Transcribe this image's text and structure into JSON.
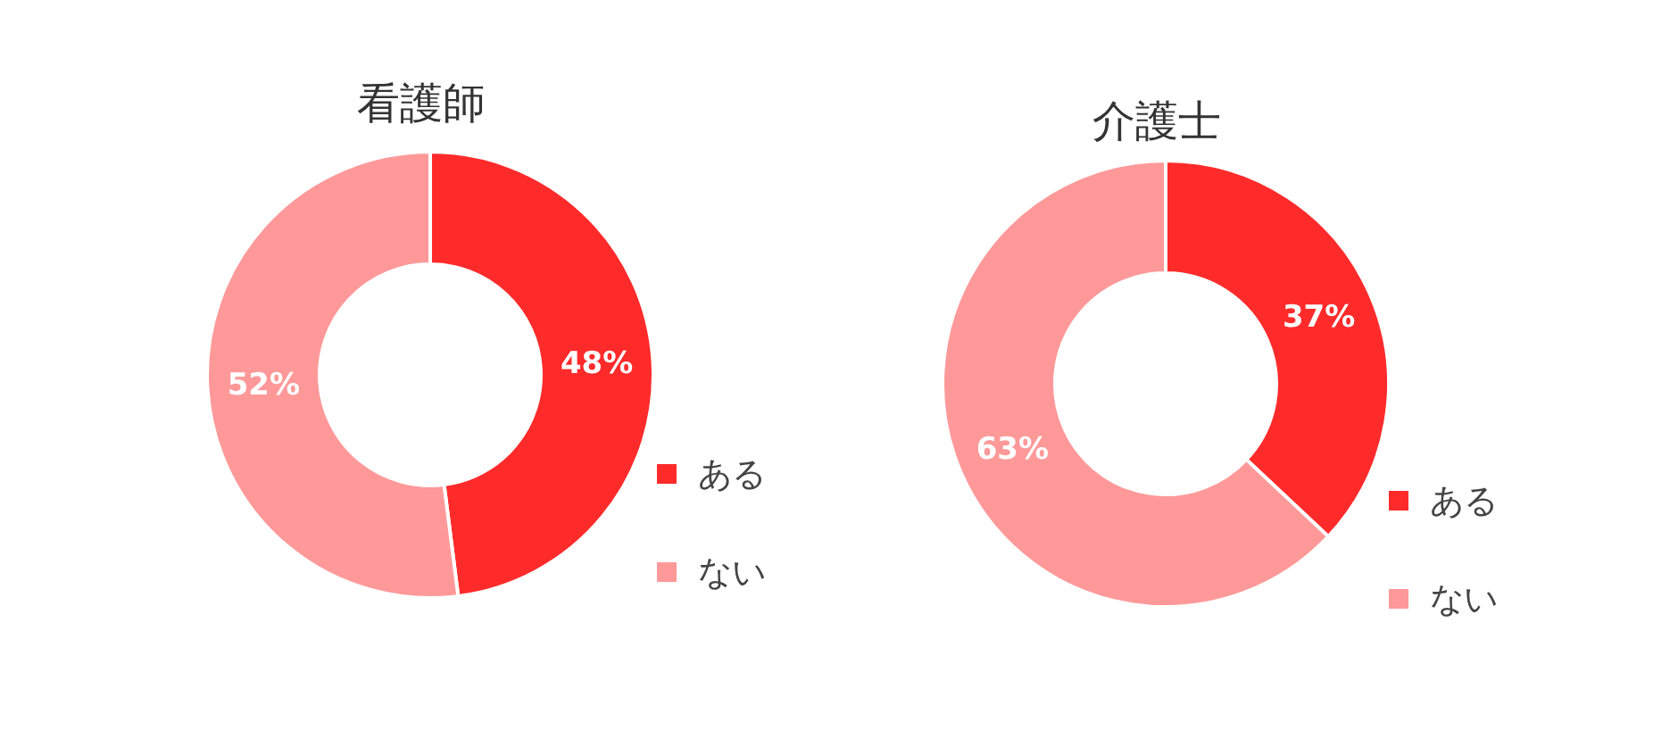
{
  "chart_data": [
    {
      "type": "donut",
      "title": "看護師",
      "categories": [
        "ある",
        "ない"
      ],
      "values": [
        48,
        52
      ],
      "value_labels": [
        "48%",
        "52%"
      ],
      "colors": [
        "#ff2b2b",
        "#ff9999"
      ],
      "legend": "right"
    },
    {
      "type": "donut",
      "title": "介護士",
      "categories": [
        "ある",
        "ない"
      ],
      "values": [
        37,
        63
      ],
      "value_labels": [
        "37%",
        "63%"
      ],
      "colors": [
        "#ff2b2b",
        "#ff9999"
      ],
      "legend": "right"
    }
  ]
}
